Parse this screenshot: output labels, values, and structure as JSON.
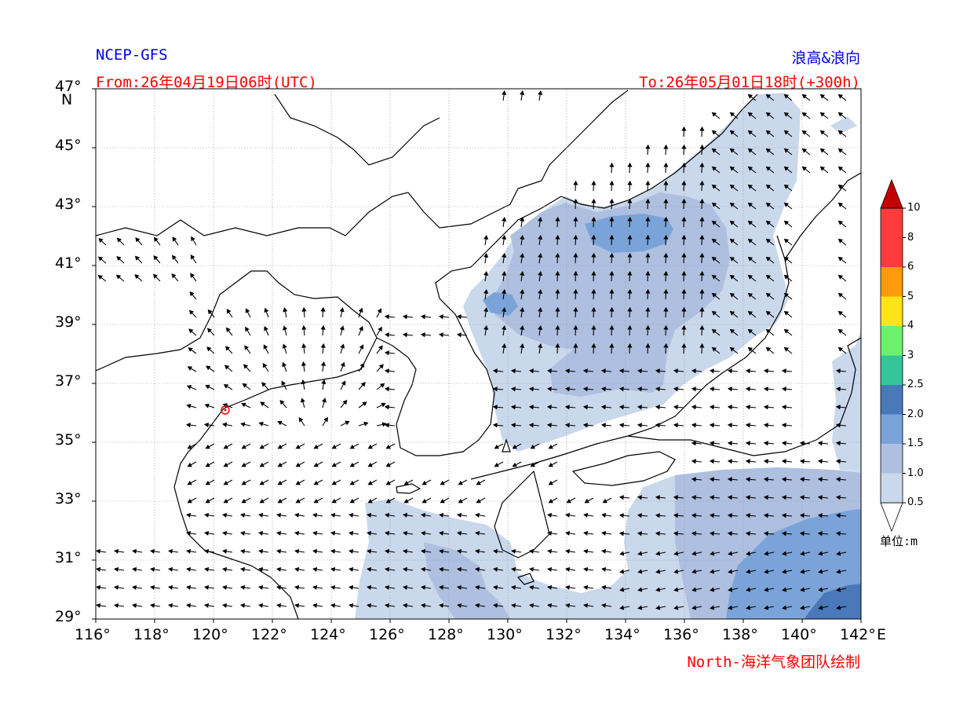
{
  "header": {
    "model": "NCEP-GFS",
    "product": "浪高&浪向",
    "from": "From:26年04月19日06时(UTC)",
    "to": "To:26年05月01日18时(+300h)",
    "credit": "North-海洋气象团队绘制"
  },
  "axes": {
    "lat_labels": [
      "47°",
      "45°",
      "43°",
      "41°",
      "39°",
      "37°",
      "35°",
      "33°",
      "31°",
      "29°"
    ],
    "lat_values": [
      47,
      45,
      43,
      41,
      39,
      37,
      35,
      33,
      31,
      29
    ],
    "lat_unit": "N",
    "lon_labels": [
      "116°",
      "118°",
      "120°",
      "122°",
      "124°",
      "126°",
      "128°",
      "130°",
      "132°",
      "134°",
      "136°",
      "138°",
      "140°",
      "142°"
    ],
    "lon_values": [
      116,
      118,
      120,
      122,
      124,
      126,
      128,
      130,
      132,
      134,
      136,
      138,
      140,
      142
    ],
    "lon_unit": "E",
    "lon_range": [
      116,
      142
    ],
    "lat_range": [
      29,
      47
    ]
  },
  "colorbar": {
    "levels": [
      "0.5",
      "1.0",
      "1.5",
      "2.0",
      "2.5",
      "3",
      "4",
      "5",
      "6",
      "8",
      "10"
    ],
    "colors": [
      "#ffffff",
      "#cad8ec",
      "#aebfe0",
      "#7aa3d9",
      "#4a78b8",
      "#35c59a",
      "#6cf26a",
      "#ffe31a",
      "#ff9a0a",
      "#ff3b3b",
      "#c40000"
    ],
    "unit": "单位:m"
  },
  "marker": {
    "name": "station-marker",
    "lon": 120.4,
    "lat": 36.1,
    "color": "#ff0000"
  },
  "colors": {
    "grid": "#9a9a9a",
    "coast": "#000000"
  }
}
